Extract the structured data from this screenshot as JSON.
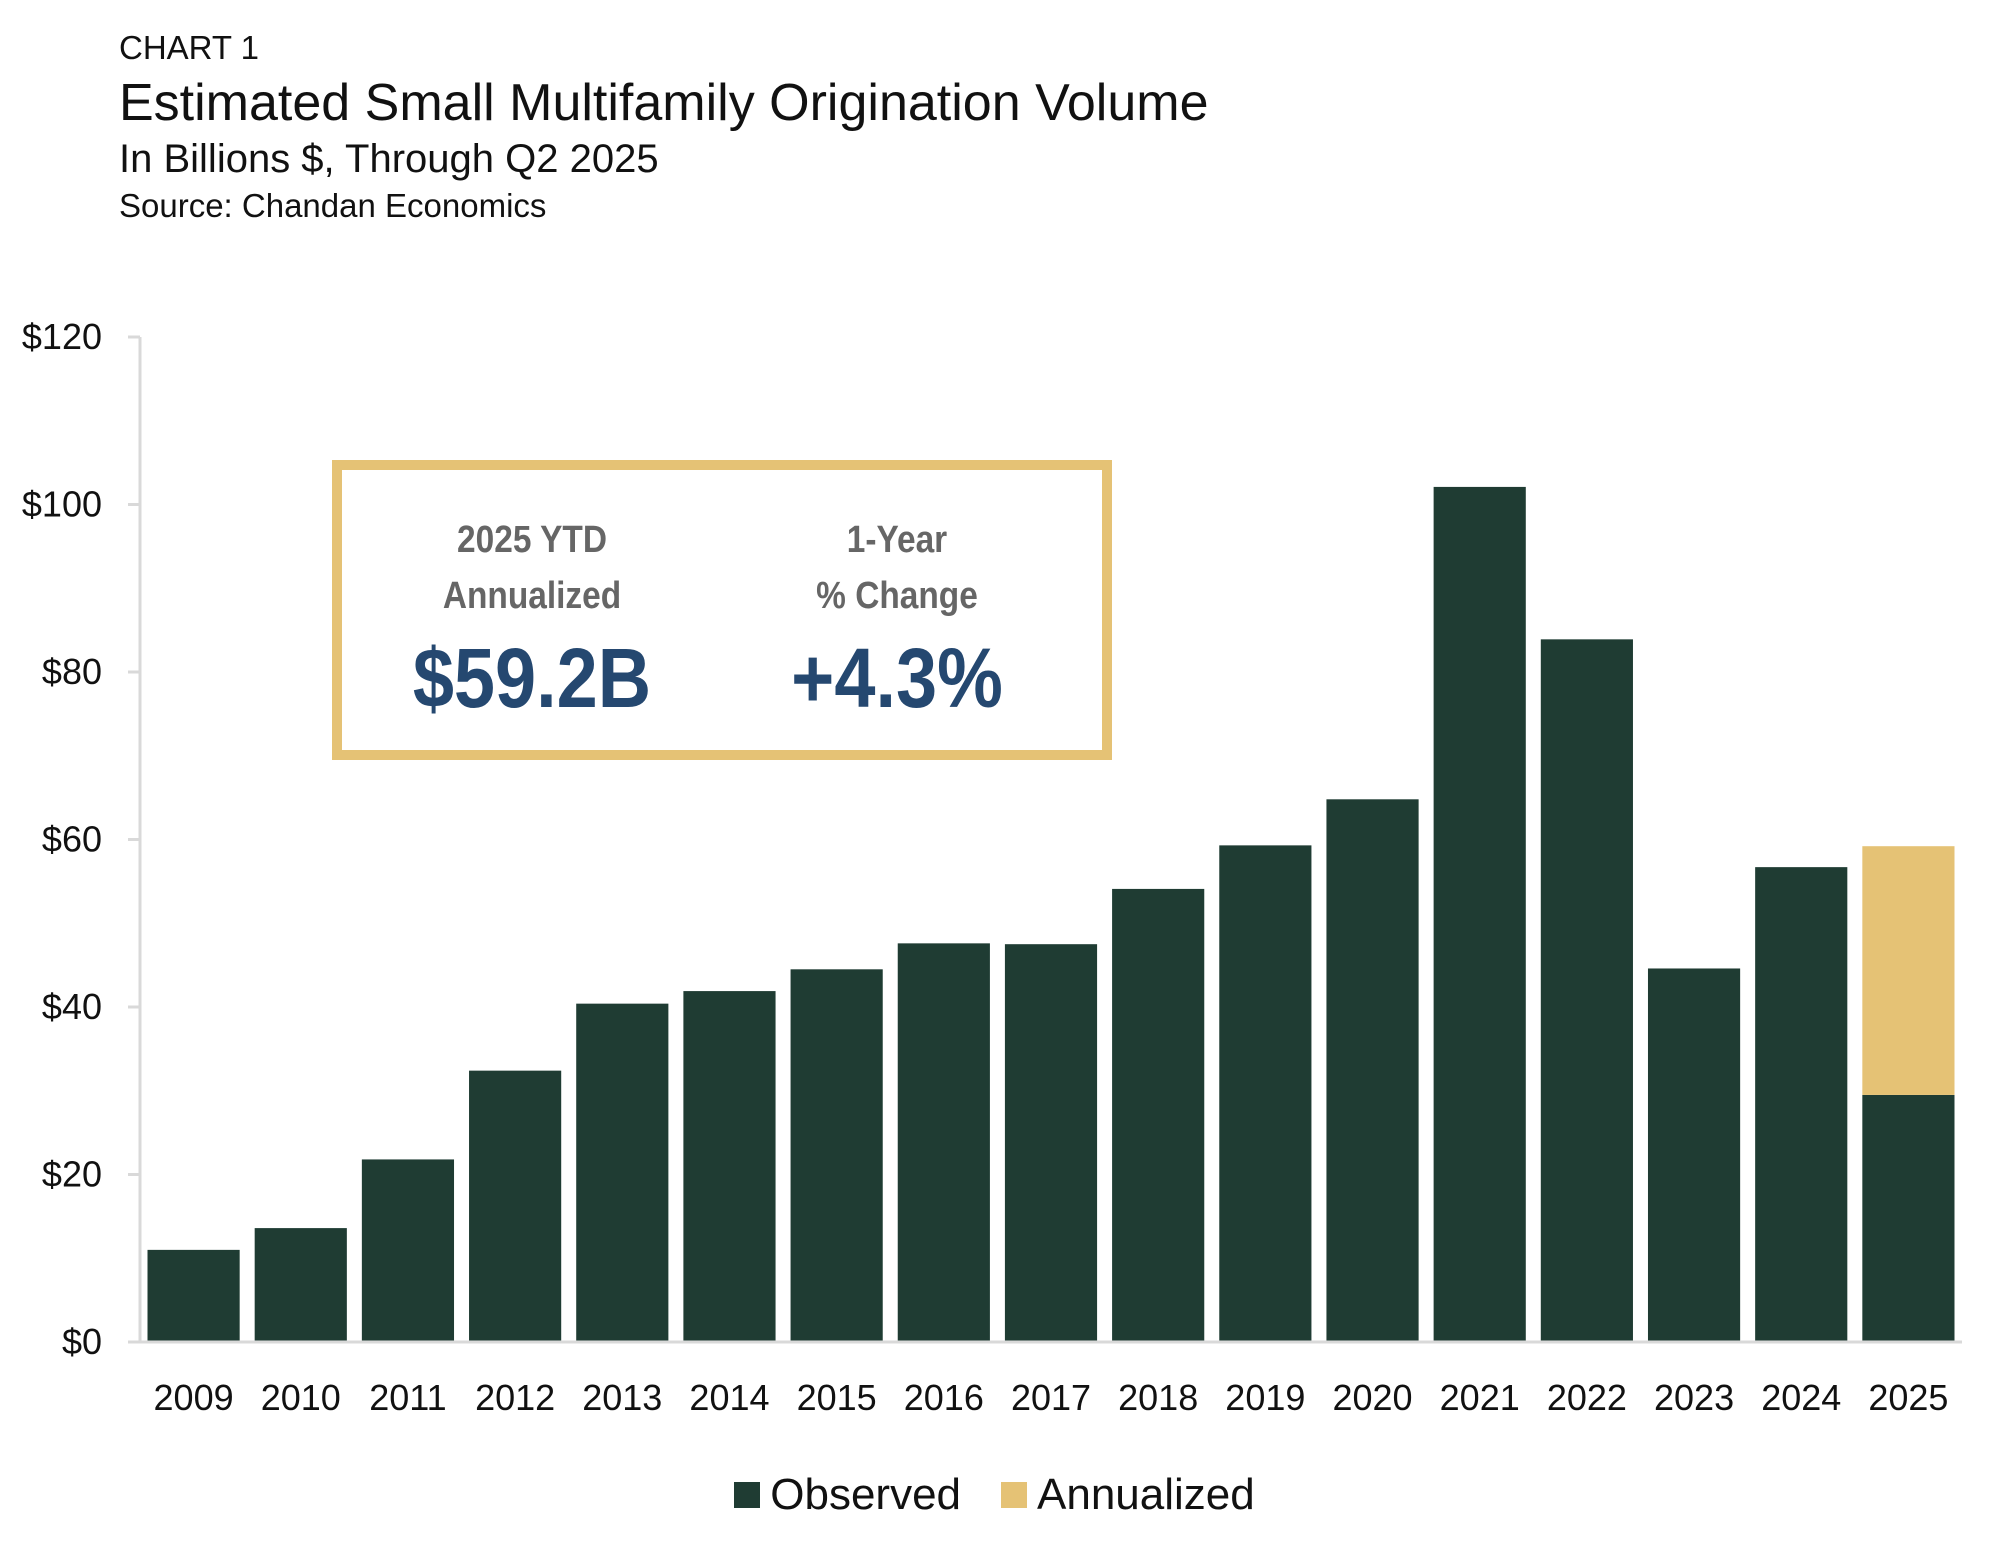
{
  "header": {
    "label": "CHART 1",
    "title": "Estimated Small Multifamily Origination Volume",
    "subtitle": "In Billions $, Through Q2 2025",
    "source": "Source: Chandan Economics"
  },
  "kpis": {
    "left": {
      "label_line1": "2025 YTD",
      "label_line2": "Annualized",
      "value": "$59.2B"
    },
    "right": {
      "label_line1": "1-Year",
      "label_line2": "% Change",
      "value": "+4.3%"
    }
  },
  "legend": {
    "observed": "Observed",
    "annualized": "Annualized"
  },
  "colors": {
    "observed": "#1f3c33",
    "annualized": "#e5c275",
    "kpi_value": "#254870",
    "kpi_label": "#666666",
    "axis": "#d9d9d9"
  },
  "chart_data": {
    "type": "bar",
    "stacked": true,
    "title": "Estimated Small Multifamily Origination Volume",
    "subtitle": "In Billions $, Through Q2 2025",
    "xlabel": "",
    "ylabel": "",
    "categories": [
      "2009",
      "2010",
      "2011",
      "2012",
      "2013",
      "2014",
      "2015",
      "2016",
      "2017",
      "2018",
      "2019",
      "2020",
      "2021",
      "2022",
      "2023",
      "2024",
      "2025"
    ],
    "series": [
      {
        "name": "Observed",
        "values": [
          11.0,
          13.6,
          21.8,
          32.4,
          40.4,
          41.9,
          44.5,
          47.6,
          47.5,
          54.1,
          59.3,
          64.8,
          102.1,
          83.9,
          44.6,
          56.7,
          29.5
        ]
      },
      {
        "name": "Annualized",
        "values": [
          0,
          0,
          0,
          0,
          0,
          0,
          0,
          0,
          0,
          0,
          0,
          0,
          0,
          0,
          0,
          0,
          29.7
        ]
      }
    ],
    "ylim": [
      0,
      120
    ],
    "yticks": [
      0,
      20,
      40,
      60,
      80,
      100,
      120
    ],
    "ytick_labels": [
      "$0",
      "$20",
      "$40",
      "$60",
      "$80",
      "$100",
      "$120"
    ],
    "grid": false,
    "legend_position": "bottom"
  }
}
